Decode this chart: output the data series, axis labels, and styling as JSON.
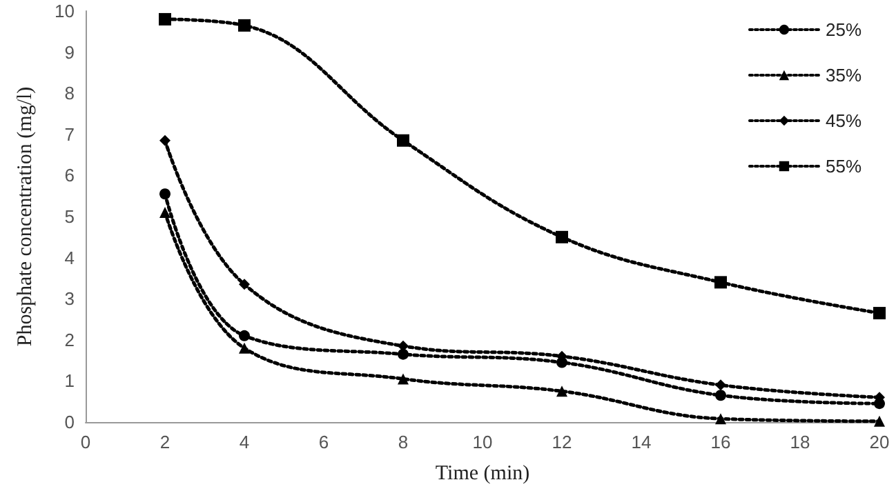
{
  "chart_data": {
    "type": "line",
    "xlabel": "Time (min)",
    "ylabel": "Phosphate concentration (mg/l)",
    "x": [
      2,
      4,
      8,
      12,
      16,
      20
    ],
    "series": [
      {
        "name": "25%",
        "color": "#000000",
        "marker": "circle",
        "values": [
          5.55,
          2.1,
          1.65,
          1.45,
          0.65,
          0.45
        ]
      },
      {
        "name": "35%",
        "color": "#000000",
        "marker": "triangle",
        "values": [
          5.1,
          1.8,
          1.05,
          0.75,
          0.08,
          0.02
        ]
      },
      {
        "name": "45%",
        "color": "#000000",
        "marker": "diamond",
        "values": [
          6.85,
          3.35,
          1.85,
          1.6,
          0.9,
          0.6
        ]
      },
      {
        "name": "55%",
        "color": "#000000",
        "marker": "square",
        "values": [
          9.8,
          9.65,
          6.85,
          4.5,
          3.4,
          2.65
        ]
      }
    ],
    "xlim": [
      0,
      20
    ],
    "xticks": [
      0,
      2,
      4,
      6,
      8,
      10,
      12,
      14,
      16,
      18,
      20
    ],
    "ylim": [
      0,
      10
    ],
    "yticks": [
      0,
      1,
      2,
      3,
      4,
      5,
      6,
      7,
      8,
      9,
      10
    ],
    "grid": false,
    "legend": "top right",
    "line_style": "dotted"
  }
}
